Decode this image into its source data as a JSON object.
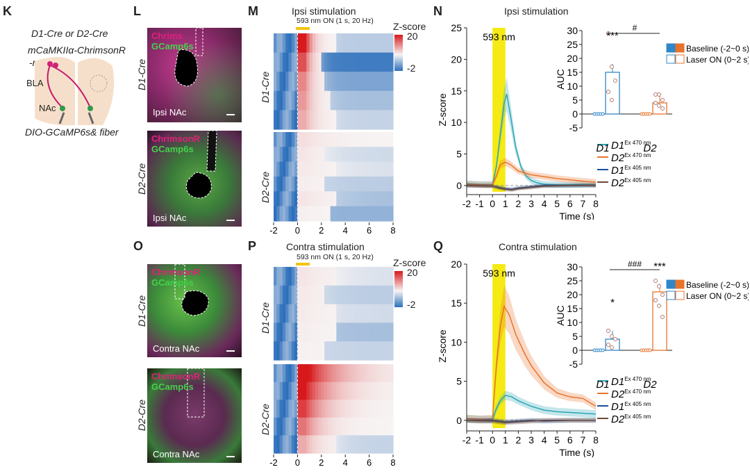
{
  "panel_labels": {
    "K": "K",
    "L": "L",
    "M": "M",
    "N": "N",
    "O": "O",
    "P": "P",
    "Q": "Q"
  },
  "schematic": {
    "line1": "D1-Cre or D2-Cre",
    "line2": "mCaMKIIα-ChrimsonR",
    "line3": "-mCherry",
    "bla": "BLA",
    "nac": "NAc",
    "bottom": "DIO-GCaMP6s& fiber"
  },
  "micro": {
    "chrimson": "ChrimsonR",
    "chrimson_cut": "Chrims",
    "gcamp": "GCamp6s",
    "ipsi_nac": "Ipsi NAc",
    "contra_nac": "Contra NAc",
    "d1": "D1-Cre",
    "d2": "D2-Cre"
  },
  "heatmaps": {
    "ipsi_title": "Ipsi stimulation",
    "contra_title": "Contra stimulation",
    "laser_label": "593 nm ON (1 s, 20 Hz)",
    "zscore_label": "Z-score",
    "scale_max": "20",
    "scale_min": "-2",
    "x_ticks": [
      "-2",
      "0",
      "2",
      "4",
      "6",
      "8"
    ],
    "row_labels": [
      "D1-Cre",
      "D2-Cre"
    ],
    "colors": {
      "high": "#d7191c",
      "mid": "#f7f4f4",
      "low": "#2c6fbb"
    }
  },
  "chart_data": [
    {
      "type": "line",
      "panel": "N",
      "title": "Ipsi stimulation",
      "annotation": "593 nm",
      "xlabel": "Time (s)",
      "ylabel": "Z-score",
      "xlim": [
        -2,
        8
      ],
      "ylim": [
        -1,
        25
      ],
      "x_ticks": [
        "-2",
        "-1",
        "0",
        "1",
        "2",
        "3",
        "4",
        "5",
        "6",
        "7",
        "8"
      ],
      "y_ticks": [
        "0",
        "5",
        "10",
        "15",
        "20",
        "25"
      ],
      "stim_window": [
        0,
        1
      ],
      "series": [
        {
          "name": "D1 Ex 470 nm",
          "label": "D1",
          "sup": "Ex 470 nm",
          "color": "#2aa6b6",
          "x": [
            -2,
            -1,
            0,
            0.3,
            0.6,
            0.9,
            1.1,
            1.4,
            1.8,
            2.2,
            2.6,
            3,
            3.5,
            4,
            5,
            6,
            7,
            8
          ],
          "y": [
            0.3,
            0.2,
            0.2,
            3,
            8,
            13,
            14.5,
            11,
            6,
            3,
            1.5,
            0.8,
            0.4,
            0.2,
            0.1,
            0.1,
            0.2,
            0.2
          ]
        },
        {
          "name": "D2 Ex 470 nm",
          "label": "D2",
          "sup": "Ex 470 nm",
          "color": "#e8732b",
          "x": [
            -2,
            -1,
            0,
            0.3,
            0.6,
            1,
            1.4,
            2,
            3,
            4,
            5,
            6,
            7,
            8
          ],
          "y": [
            0.2,
            0.1,
            0.1,
            1.5,
            3.3,
            3.7,
            3.3,
            2.3,
            1.7,
            1.4,
            1.1,
            0.9,
            0.7,
            0.5
          ]
        },
        {
          "name": "D1 Ex 405 nm",
          "label": "D1",
          "sup": "Ex 405 nm",
          "color": "#1f4e9c",
          "x": [
            -2,
            0,
            0.5,
            1,
            1.5,
            2,
            3,
            4,
            6,
            8
          ],
          "y": [
            0,
            -0.1,
            -0.3,
            -0.5,
            -0.6,
            -0.4,
            -0.2,
            0,
            0,
            0
          ]
        },
        {
          "name": "D2 Ex 405 nm",
          "label": "D2",
          "sup": "Ex 405 nm",
          "color": "#6b4a3a",
          "x": [
            -2,
            0,
            0.5,
            1,
            1.5,
            2,
            3,
            4,
            6,
            8
          ],
          "y": [
            0,
            -0.1,
            -0.4,
            -0.6,
            -0.7,
            -0.5,
            -0.3,
            -0.1,
            0,
            0
          ]
        }
      ]
    },
    {
      "type": "bar",
      "panel": "N-inset",
      "categories": [
        "D1",
        "D2"
      ],
      "ylabel": "AUC",
      "ylim": [
        -5,
        30
      ],
      "y_ticks": [
        "-5",
        "0",
        "5",
        "10",
        "15",
        "20",
        "25",
        "30"
      ],
      "significance": {
        "d1": "***",
        "between": "#"
      },
      "legend": [
        "Baseline (-2~0 s)",
        "Laser ON (0~2 s)"
      ],
      "series": [
        {
          "name": "Baseline (-2~0 s)",
          "values": [
            0,
            0
          ]
        },
        {
          "name": "Laser ON (0~2 s)",
          "values": [
            15,
            4
          ]
        }
      ],
      "points": {
        "D1": [
          29,
          17,
          12,
          8,
          5
        ],
        "D2": [
          7,
          7,
          5,
          4,
          3,
          2
        ]
      },
      "colors": {
        "d1": "#2f87c8",
        "d2": "#e8732b"
      }
    },
    {
      "type": "line",
      "panel": "Q",
      "title": "Contra stimulation",
      "annotation": "593 nm",
      "xlabel": "Time (s)",
      "ylabel": "Z-score",
      "xlim": [
        -2,
        8
      ],
      "ylim": [
        -1,
        20
      ],
      "x_ticks": [
        "-2",
        "-1",
        "0",
        "1",
        "2",
        "3",
        "4",
        "5",
        "6",
        "7",
        "8"
      ],
      "y_ticks": [
        "0",
        "5",
        "10",
        "15",
        "20"
      ],
      "stim_window": [
        0,
        1
      ],
      "series": [
        {
          "name": "D1 Ex 470 nm",
          "label": "D1",
          "sup": "Ex 470 nm",
          "color": "#2aa6b6",
          "x": [
            -2,
            -1,
            0,
            0.3,
            0.6,
            1,
            1.5,
            2,
            3,
            4,
            5,
            6,
            7,
            8
          ],
          "y": [
            0.2,
            0.1,
            0.1,
            1.5,
            2.5,
            3.2,
            3,
            2.5,
            1.8,
            1.3,
            1.1,
            1,
            0.9,
            0.8
          ]
        },
        {
          "name": "D2 Ex 470 nm",
          "label": "D2",
          "sup": "Ex 470 nm",
          "color": "#e8732b",
          "x": [
            -2,
            -1,
            0,
            0.3,
            0.6,
            0.9,
            1.3,
            1.8,
            2.5,
            3,
            4,
            5,
            6,
            7,
            8
          ],
          "y": [
            0.2,
            0.1,
            0.2,
            7,
            12,
            14.6,
            13.5,
            11,
            8.5,
            7,
            4.8,
            3.5,
            3,
            2.8,
            1.8
          ]
        },
        {
          "name": "D1 Ex 405 nm",
          "label": "D1",
          "sup": "Ex 405 nm",
          "color": "#1f4e9c",
          "x": [
            -2,
            0,
            1,
            2,
            3,
            4,
            6,
            8
          ],
          "y": [
            0,
            0,
            -0.2,
            -0.1,
            0,
            -0.1,
            0,
            0
          ]
        },
        {
          "name": "D2 Ex 405 nm",
          "label": "D2",
          "sup": "Ex 405 nm",
          "color": "#6b4a3a",
          "x": [
            -2,
            0,
            1,
            2,
            3,
            4,
            6,
            8
          ],
          "y": [
            0,
            -0.1,
            -0.3,
            -0.2,
            -0.1,
            0,
            0,
            0
          ]
        }
      ]
    },
    {
      "type": "bar",
      "panel": "Q-inset",
      "categories": [
        "D1",
        "D2"
      ],
      "ylabel": "AUC",
      "ylim": [
        -5,
        30
      ],
      "y_ticks": [
        "-5",
        "0",
        "5",
        "10",
        "15",
        "20",
        "25",
        "30"
      ],
      "significance": {
        "d1": "*",
        "d2": "***",
        "between": "###"
      },
      "legend": [
        "Baseline (-2~0 s)",
        "Laser ON (0~2 s)"
      ],
      "series": [
        {
          "name": "Baseline (-2~0 s)",
          "values": [
            0,
            0
          ]
        },
        {
          "name": "Laser ON (0~2 s)",
          "values": [
            4,
            21
          ]
        }
      ],
      "points": {
        "D1": [
          7,
          5,
          4,
          2,
          1
        ],
        "D2": [
          25,
          23,
          20,
          18,
          16,
          12
        ]
      },
      "colors": {
        "d1": "#2f87c8",
        "d2": "#e8732b"
      }
    }
  ]
}
